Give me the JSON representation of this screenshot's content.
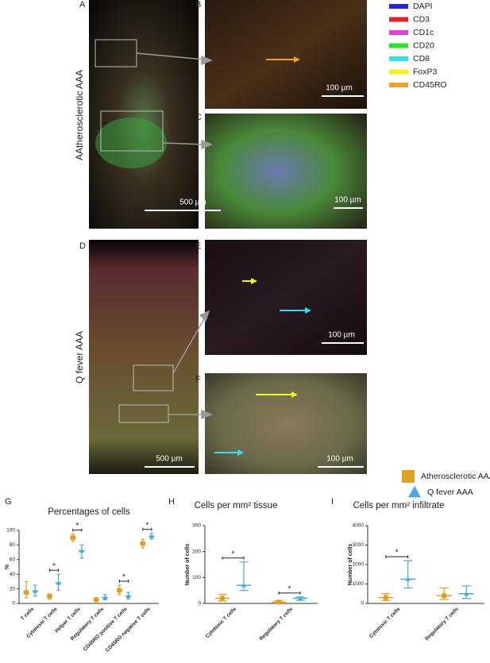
{
  "panel_labels": [
    "A",
    "B",
    "C",
    "D",
    "E",
    "F",
    "G",
    "H",
    "I"
  ],
  "row_labels": [
    "AAtherosclerotic AAA",
    "Q fever AAA"
  ],
  "channels": [
    {
      "name": "DAPI",
      "color": "#2323e6"
    },
    {
      "name": "CD3",
      "color": "#e8202a"
    },
    {
      "name": "CD1c",
      "color": "#e040e0"
    },
    {
      "name": "CD20",
      "color": "#2ee02e"
    },
    {
      "name": "CD8",
      "color": "#30e0ea"
    },
    {
      "name": "FoxP3",
      "color": "#f2f21e"
    },
    {
      "name": "CD45RO",
      "color": "#f0a030"
    }
  ],
  "scale_bars": [
    "500 µm",
    "100 µm",
    "100 µm",
    "500 µm",
    "100 µm",
    "100 µm"
  ],
  "legend": [
    {
      "name": "Atherosclerotic AAA",
      "color": "#e0a020",
      "marker": "square"
    },
    {
      "name": "Q fever AAA",
      "color": "#4aa8e0",
      "marker": "triangle"
    }
  ],
  "chart_data": [
    {
      "type": "dot",
      "title": "Percentages of cells",
      "ylabel": "%",
      "categories": [
        "T cells",
        "Cytotoxic T cells",
        "Helper T cells",
        "Regulatory T cells",
        "CD45RO positive T cells",
        "CD45RO negative T cells"
      ],
      "ylim": [
        0,
        100
      ],
      "yticks": [
        0,
        20,
        40,
        60,
        80,
        100
      ],
      "series": [
        {
          "color": "#e0a020",
          "values": [
            15,
            10,
            90,
            5,
            18,
            82
          ],
          "low": [
            8,
            6,
            85,
            3,
            12,
            76
          ],
          "high": [
            30,
            13,
            95,
            8,
            25,
            88
          ]
        },
        {
          "color": "#4aa8e0",
          "values": [
            17,
            28,
            72,
            8,
            10,
            92
          ],
          "low": [
            10,
            18,
            62,
            5,
            6,
            88
          ],
          "high": [
            25,
            40,
            80,
            12,
            15,
            96
          ]
        }
      ],
      "significance": [
        null,
        "*",
        "*",
        null,
        "*",
        "*"
      ]
    },
    {
      "type": "dot",
      "title": "Cells per mm² tissue",
      "ylabel": "Number of cells",
      "categories": [
        "Cytotoxic T cells",
        "Regulatory T cells"
      ],
      "ylim": [
        0,
        300
      ],
      "yticks": [
        0,
        100,
        200,
        300
      ],
      "series": [
        {
          "color": "#e0a020",
          "values": [
            20,
            5
          ],
          "low": [
            10,
            2
          ],
          "high": [
            35,
            10
          ]
        },
        {
          "color": "#4aa8e0",
          "values": [
            70,
            20
          ],
          "low": [
            50,
            12
          ],
          "high": [
            160,
            25
          ]
        }
      ],
      "significance": [
        "*",
        "*"
      ]
    },
    {
      "type": "dot",
      "title": "Cells per mm² infiltrate",
      "ylabel": "Number of cells",
      "categories": [
        "Cytotoxic T cells",
        "Regulatory T cells"
      ],
      "ylim": [
        0,
        4000
      ],
      "yticks": [
        0,
        1000,
        2000,
        3000,
        4000
      ],
      "series": [
        {
          "color": "#e0a020",
          "values": [
            300,
            400
          ],
          "low": [
            150,
            200
          ],
          "high": [
            500,
            800
          ]
        },
        {
          "color": "#4aa8e0",
          "values": [
            1250,
            500
          ],
          "low": [
            800,
            250
          ],
          "high": [
            2200,
            900
          ]
        }
      ],
      "significance": [
        "*",
        null
      ]
    }
  ]
}
